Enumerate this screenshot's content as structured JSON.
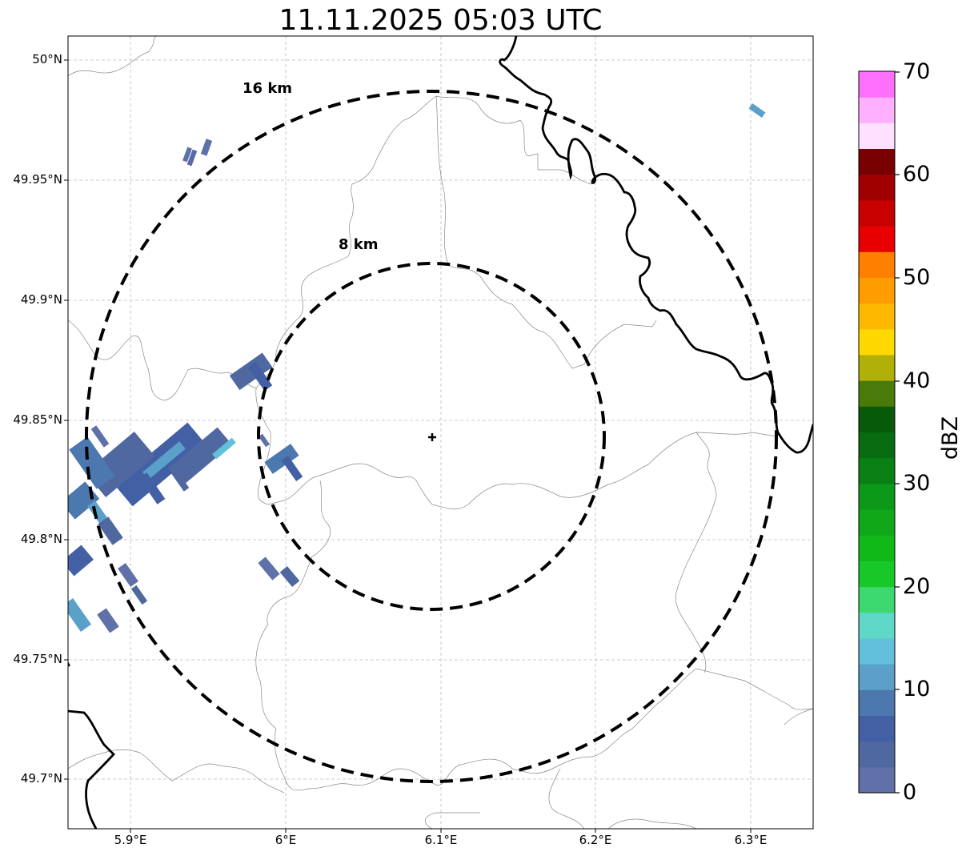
{
  "title": "11.11.2025 05:03 UTC",
  "map": {
    "latitude_ticks": [
      "50°N",
      "49.95°N",
      "49.9°N",
      "49.85°N",
      "49.8°N",
      "49.75°N",
      "49.7°N"
    ],
    "longitude_ticks": [
      "5.9°E",
      "6°E",
      "6.1°E",
      "6.2°E",
      "6.3°E"
    ],
    "radar_site": {
      "lon": 6.095,
      "lat": 49.843
    },
    "range_rings": [
      {
        "label": "16 km",
        "radius_km": 16
      },
      {
        "label": "8 km",
        "radius_km": 8
      }
    ]
  },
  "colorbar": {
    "label": "dBZ",
    "ticks": [
      "0",
      "10",
      "20",
      "30",
      "40",
      "50",
      "60",
      "70"
    ],
    "min": 0,
    "max": 70,
    "step": 2.5,
    "colors": [
      "#6070a8",
      "#5068a0",
      "#4460a4",
      "#4c78b0",
      "#5aa0c8",
      "#62c0dc",
      "#60d8c8",
      "#3cd870",
      "#18c828",
      "#10b818",
      "#10a818",
      "#0c9818",
      "#0a8014",
      "#086c10",
      "#065a0a",
      "#4a7a0a",
      "#b0b008",
      "#ffd800",
      "#ffb800",
      "#ff9c00",
      "#ff8000",
      "#e80000",
      "#c80000",
      "#a00000",
      "#780000",
      "#ffe0ff",
      "#ffb0ff",
      "#ff70ff",
      "#f040f0"
    ]
  }
}
